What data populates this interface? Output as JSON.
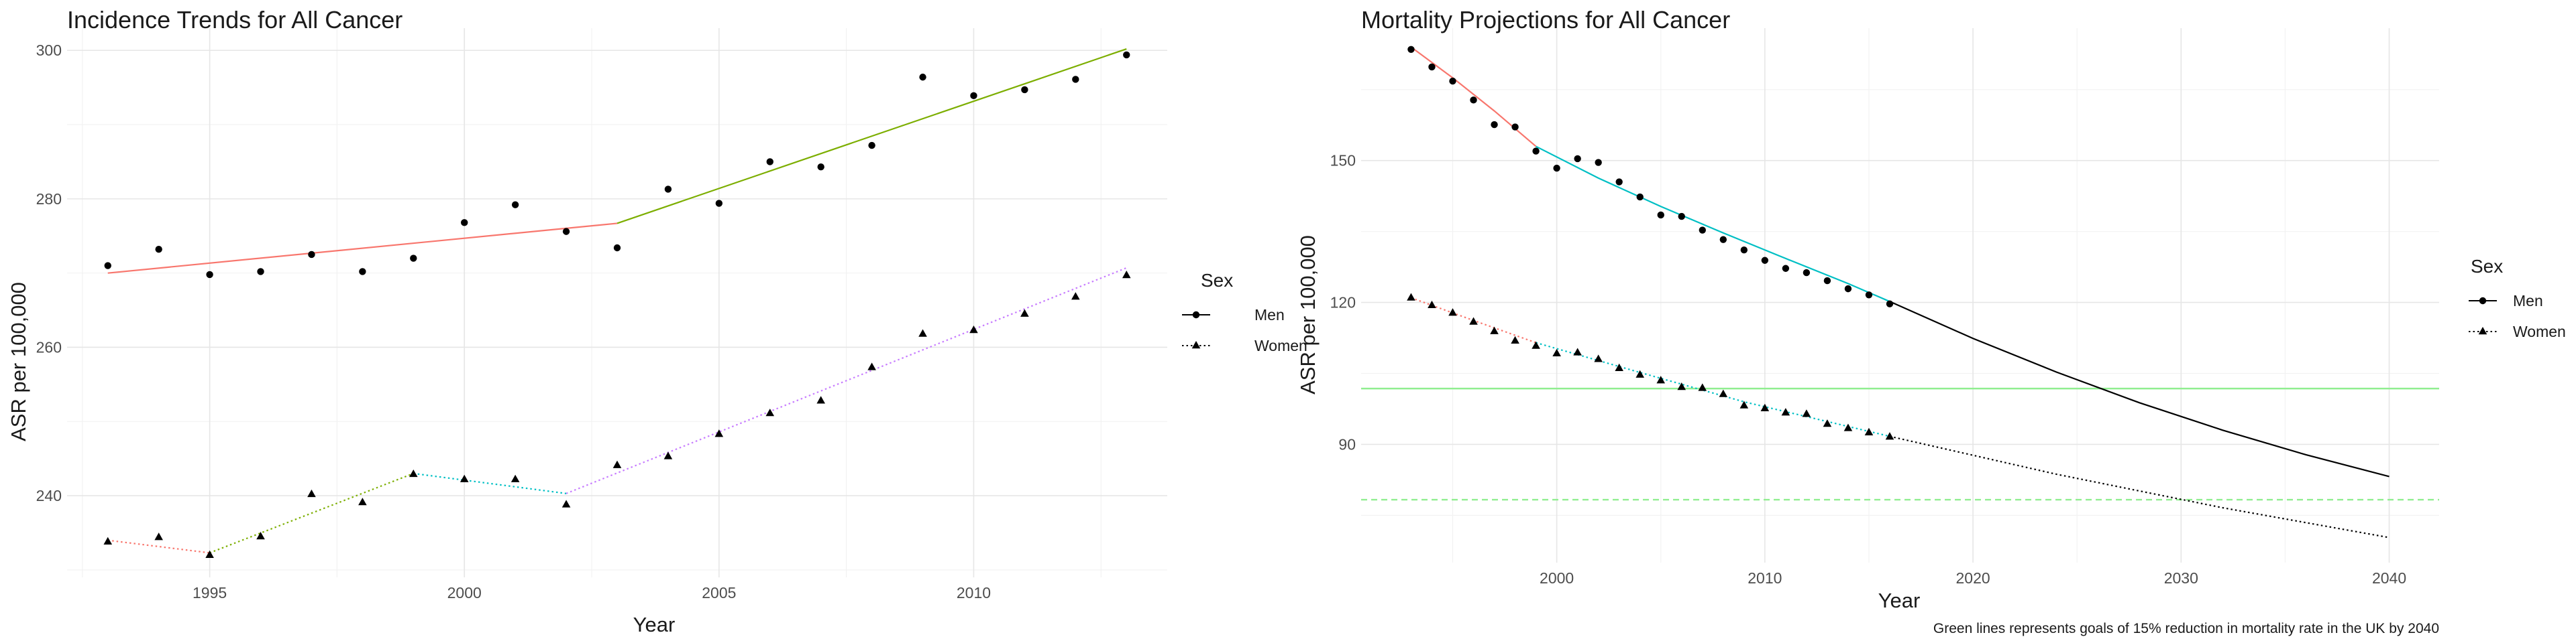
{
  "chart_data": [
    {
      "type": "line",
      "title": "Incidence Trends for All Cancer",
      "xlabel": "Year",
      "ylabel": "ASR per 100,000",
      "xlim": [
        1992.2,
        2013.8
      ],
      "ylim": [
        229,
        303
      ],
      "x_ticks": [
        1995,
        2000,
        2005,
        2010
      ],
      "y_ticks": [
        240,
        260,
        280,
        300
      ],
      "grid": true,
      "legend": {
        "title": "Sex",
        "position": "right",
        "entries": [
          "Men",
          "Women"
        ]
      },
      "series": [
        {
          "name": "Men",
          "marker": "circle",
          "points": {
            "x": [
              1993,
              1994,
              1995,
              1996,
              1997,
              1998,
              1999,
              2000,
              2001,
              2002,
              2003,
              2004,
              2005,
              2006,
              2007,
              2008,
              2009,
              2010,
              2011,
              2012,
              2013
            ],
            "y": [
              271,
              273.2,
              269.8,
              270.2,
              272.5,
              270.2,
              272.0,
              276.8,
              279.2,
              275.6,
              273.4,
              281.3,
              279.4,
              285.0,
              284.3,
              287.2,
              296.4,
              293.9,
              294.7,
              296.1,
              299.4
            ]
          },
          "segments": [
            {
              "x": [
                1993,
                2003
              ],
              "y": [
                270.0,
                276.7
              ],
              "color": "#F8766D",
              "dash": "solid"
            },
            {
              "x": [
                2003,
                2013
              ],
              "y": [
                276.7,
                300.2
              ],
              "color": "#7CAE00",
              "dash": "solid"
            }
          ]
        },
        {
          "name": "Women",
          "marker": "triangle",
          "points": {
            "x": [
              1993,
              1994,
              1995,
              1996,
              1997,
              1998,
              1999,
              2000,
              2001,
              2002,
              2003,
              2004,
              2005,
              2006,
              2007,
              2008,
              2009,
              2010,
              2011,
              2012,
              2013
            ],
            "y": [
              233.8,
              234.4,
              232.0,
              234.5,
              240.2,
              239.1,
              242.9,
              242.2,
              242.2,
              238.8,
              244.1,
              245.3,
              248.3,
              251.1,
              252.8,
              257.3,
              261.8,
              262.3,
              264.5,
              266.8,
              269.7
            ]
          },
          "segments": [
            {
              "x": [
                1993,
                1995
              ],
              "y": [
                234.0,
                232.3
              ],
              "color": "#F8766D",
              "dash": "dotted"
            },
            {
              "x": [
                1995,
                1999
              ],
              "y": [
                232.3,
                243.0
              ],
              "color": "#7CAE00",
              "dash": "dotted"
            },
            {
              "x": [
                1999,
                2002
              ],
              "y": [
                243.0,
                240.3
              ],
              "color": "#00BFC4",
              "dash": "dotted"
            },
            {
              "x": [
                2002,
                2013
              ],
              "y": [
                240.3,
                270.7
              ],
              "color": "#C77CFF",
              "dash": "dotted"
            }
          ]
        }
      ]
    },
    {
      "type": "line",
      "title": "Mortality Projections for All Cancer",
      "xlabel": "Year",
      "ylabel": "ASR per 100,000",
      "xlim": [
        1990.6,
        2042.4
      ],
      "ylim": [
        65,
        178
      ],
      "x_ticks": [
        2000,
        2010,
        2020,
        2030,
        2040
      ],
      "y_ticks": [
        90,
        120,
        150
      ],
      "grid": true,
      "legend": {
        "title": "Sex",
        "position": "right",
        "entries": [
          "Men",
          "Women"
        ]
      },
      "caption": "Green lines represents goals of 15% reduction in mortality rate in the UK by 2040",
      "reference_lines": [
        {
          "y": 101.8,
          "color": "#90EE90",
          "dash": "solid"
        },
        {
          "y": 78.3,
          "color": "#90EE90",
          "dash": "dashed"
        }
      ],
      "series": [
        {
          "name": "Men",
          "marker": "circle",
          "points": {
            "x": [
              1993,
              1994,
              1995,
              1996,
              1997,
              1998,
              1999,
              2000,
              2001,
              2002,
              2003,
              2004,
              2005,
              2006,
              2007,
              2008,
              2009,
              2010,
              2011,
              2012,
              2013,
              2014,
              2015,
              2016
            ],
            "y": [
              173.5,
              169.8,
              166.8,
              162.8,
              157.6,
              157.1,
              152.0,
              148.4,
              150.4,
              149.6,
              145.5,
              142.3,
              138.5,
              138.2,
              135.3,
              133.3,
              131.1,
              128.9,
              127.2,
              126.3,
              124.6,
              122.9,
              121.6,
              119.7
            ]
          },
          "segments": [
            {
              "x": [
                1993,
                1995,
                1997,
                1999
              ],
              "y": [
                174.0,
                167.5,
                160.5,
                153.0
              ],
              "color": "#F8766D",
              "dash": "solid"
            },
            {
              "x": [
                1999,
                2002,
                2005,
                2008,
                2011,
                2014,
                2016
              ],
              "y": [
                153.0,
                146.3,
                140.3,
                134.7,
                129.3,
                124.0,
                120.2
              ],
              "color": "#00BFC4",
              "dash": "solid"
            },
            {
              "x": [
                2016,
                2020,
                2024,
                2028,
                2032,
                2036,
                2040
              ],
              "y": [
                120.2,
                112.4,
                105.3,
                98.8,
                93.0,
                87.8,
                83.2
              ],
              "color": "#000000",
              "dash": "solid"
            }
          ]
        },
        {
          "name": "Women",
          "marker": "triangle",
          "points": {
            "x": [
              1993,
              1994,
              1995,
              1996,
              1997,
              1998,
              1999,
              2000,
              2001,
              2002,
              2003,
              2004,
              2005,
              2006,
              2007,
              2008,
              2009,
              2010,
              2011,
              2012,
              2013,
              2014,
              2015,
              2016
            ],
            "y": [
              121.0,
              119.4,
              117.8,
              115.9,
              113.9,
              111.9,
              110.8,
              109.2,
              109.4,
              108.0,
              106.1,
              104.7,
              103.5,
              102.1,
              101.9,
              100.6,
              98.2,
              97.6,
              96.7,
              96.4,
              94.3,
              93.4,
              92.5,
              91.6
            ]
          },
          "segments": [
            {
              "x": [
                1993,
                1996,
                1999
              ],
              "y": [
                121.0,
                116.2,
                111.5
              ],
              "color": "#F8766D",
              "dash": "dotted"
            },
            {
              "x": [
                1999,
                2004,
                2009,
                2016
              ],
              "y": [
                111.5,
                105.2,
                99.0,
                91.7
              ],
              "color": "#00BFC4",
              "dash": "dotted"
            },
            {
              "x": [
                2016,
                2024,
                2032,
                2040
              ],
              "y": [
                91.7,
                83.7,
                76.6,
                70.3
              ],
              "color": "#000000",
              "dash": "dotted"
            }
          ]
        }
      ]
    }
  ]
}
